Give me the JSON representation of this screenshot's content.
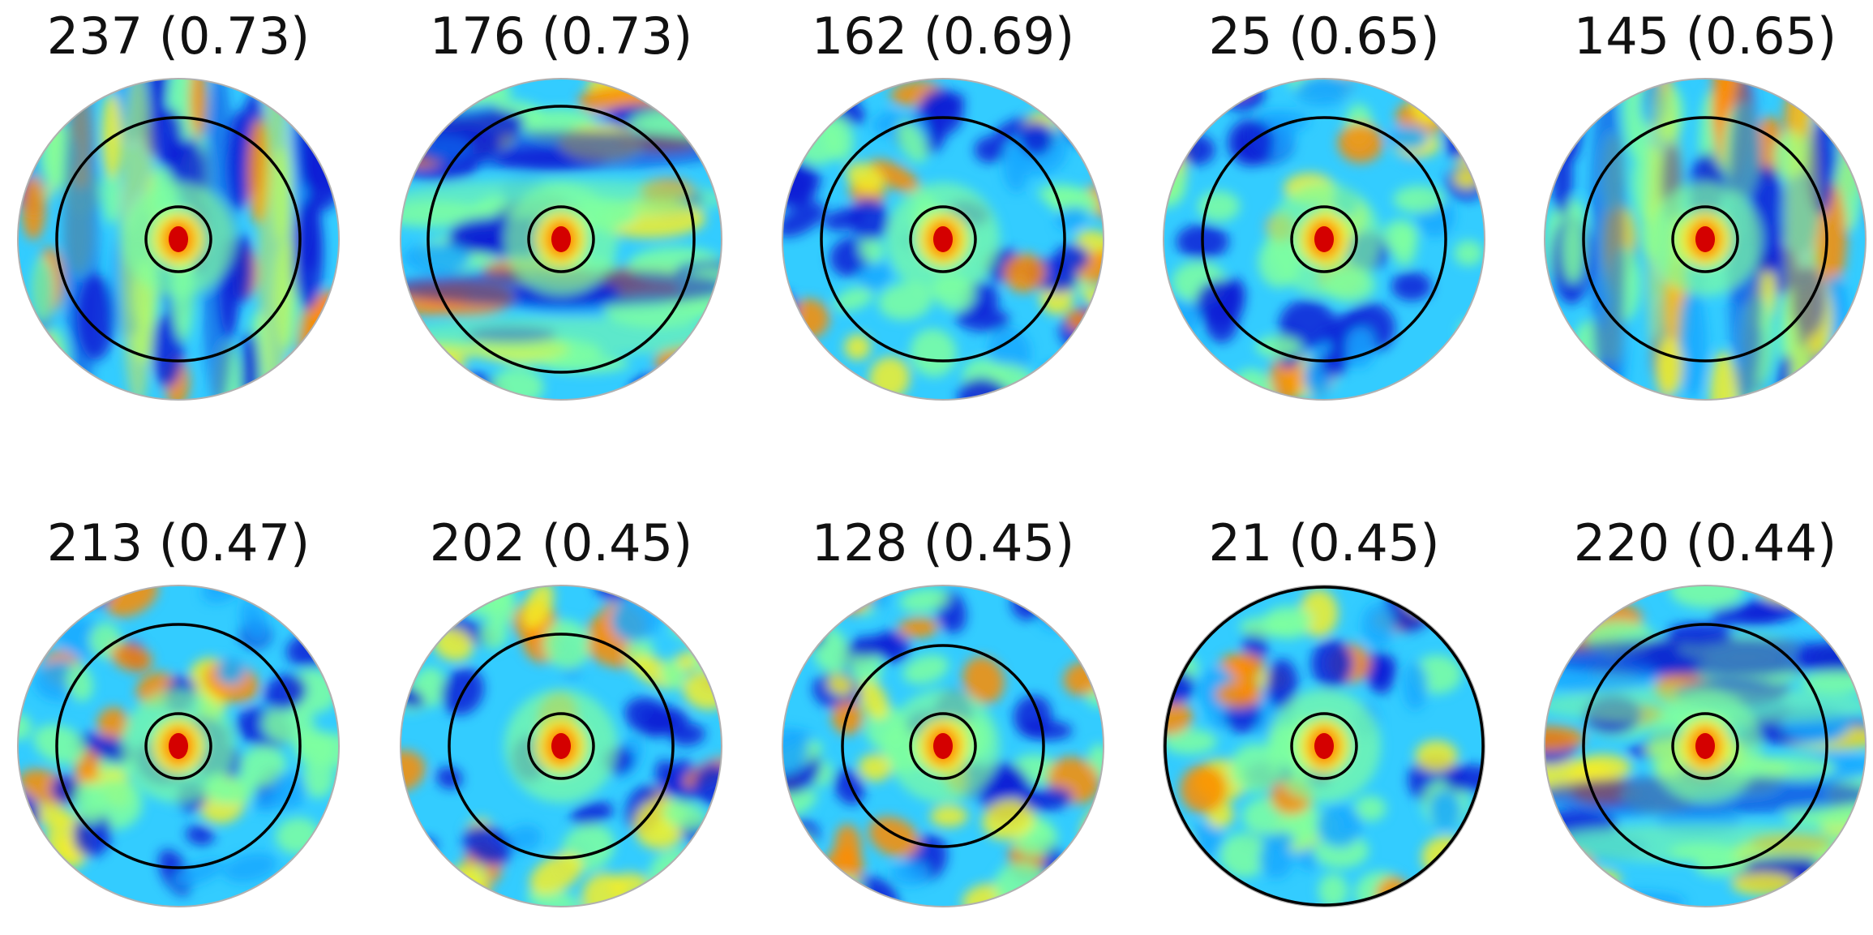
{
  "panels": [
    {
      "id": "237",
      "score": "(0.73)",
      "title": "237 (0.73)",
      "inner_r": 0.2,
      "outer_r": 0.75,
      "pattern": "vertical"
    },
    {
      "id": "176",
      "score": "(0.73)",
      "title": "176 (0.73)",
      "inner_r": 0.2,
      "outer_r": 0.82,
      "pattern": "horizontal"
    },
    {
      "id": "162",
      "score": "(0.69)",
      "title": "162 (0.69)",
      "inner_r": 0.2,
      "outer_r": 0.75,
      "pattern": "grid"
    },
    {
      "id": "25",
      "score": "(0.65)",
      "title": "25 (0.65)",
      "inner_r": 0.2,
      "outer_r": 0.75,
      "pattern": "sparse"
    },
    {
      "id": "145",
      "score": "(0.65)",
      "title": "145 (0.65)",
      "inner_r": 0.2,
      "outer_r": 0.75,
      "pattern": "vertical"
    },
    {
      "id": "213",
      "score": "(0.47)",
      "title": "213 (0.47)",
      "inner_r": 0.2,
      "outer_r": 0.75,
      "pattern": "grid"
    },
    {
      "id": "202",
      "score": "(0.45)",
      "title": "202 (0.45)",
      "inner_r": 0.2,
      "outer_r": 0.69,
      "pattern": "grid"
    },
    {
      "id": "128",
      "score": "(0.45)",
      "title": "128 (0.45)",
      "inner_r": 0.2,
      "outer_r": 0.62,
      "pattern": "grid"
    },
    {
      "id": "21",
      "score": "(0.45)",
      "title": "21 (0.45)",
      "inner_r": 0.2,
      "outer_r": 0.98,
      "pattern": "sparse"
    },
    {
      "id": "220",
      "score": "(0.44)",
      "title": "220 (0.44)",
      "inner_r": 0.2,
      "outer_r": 0.75,
      "pattern": "horizontal"
    }
  ],
  "colors": {
    "map_background": "#33ccff",
    "low": "#0a1fd6",
    "mid_low": "#19a8ff",
    "mid": "#7fffa0",
    "mid_high": "#f4ee28",
    "high": "#ff8c00",
    "peak": "#d40000",
    "circle": "#000000",
    "border": "#b0b0b0"
  }
}
